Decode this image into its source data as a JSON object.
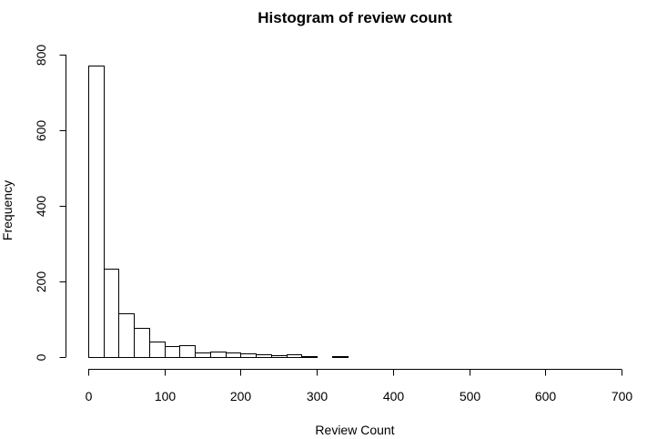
{
  "chart_data": {
    "type": "bar",
    "title": "Histogram of review count",
    "xlabel": "Review Count",
    "ylabel": "Frequency",
    "bin_width": 20,
    "bin_starts": [
      0,
      20,
      40,
      60,
      80,
      100,
      120,
      140,
      160,
      180,
      200,
      220,
      240,
      260,
      280,
      300,
      320,
      340,
      360,
      380,
      400,
      420,
      440,
      460,
      480,
      500,
      520,
      540,
      560,
      580,
      600,
      620,
      640,
      660,
      680
    ],
    "values": [
      770,
      233,
      115,
      78,
      42,
      28,
      31,
      13,
      14,
      12,
      9,
      7,
      4,
      7,
      2,
      1,
      3,
      0,
      1,
      1,
      0,
      0,
      0,
      0,
      0,
      0,
      0,
      0,
      0,
      0,
      0,
      0,
      1,
      0,
      1
    ],
    "xlim": [
      0,
      700
    ],
    "ylim": [
      0,
      800
    ],
    "xticks": [
      0,
      100,
      200,
      300,
      400,
      500,
      600,
      700
    ],
    "yticks": [
      0,
      200,
      400,
      600,
      800
    ],
    "grid": false,
    "legend": "none",
    "bar_fill": "#ffffff",
    "bar_stroke": "#000000"
  }
}
